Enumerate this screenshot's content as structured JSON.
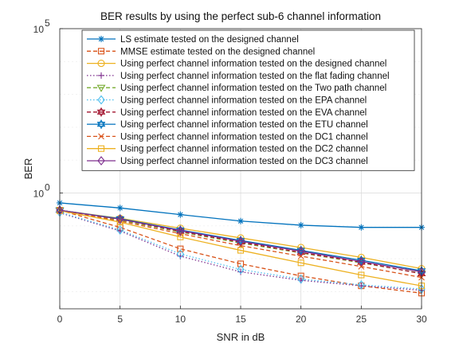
{
  "chart_data": {
    "type": "line",
    "title": "BER results by using the perfect sub-6 channel information",
    "xlabel": "SNR in dB",
    "ylabel": "BER",
    "yscale": "log",
    "x": [
      0,
      5,
      10,
      15,
      20,
      25,
      30
    ],
    "xlim": [
      0,
      30
    ],
    "ylim": [
      0.0003,
      100000
    ],
    "xticks": [
      "0",
      "5",
      "10",
      "15",
      "20",
      "25",
      "30"
    ],
    "yticks": [
      {
        "value": 100000,
        "base": "10",
        "exp": "5"
      },
      {
        "value": 1,
        "base": "10",
        "exp": "0"
      }
    ],
    "grid": true,
    "legend_position": "top",
    "series": [
      {
        "name": "LS estimate tested on the designed channel",
        "color": "#0072bd",
        "dash": "solid",
        "marker": "asterisk",
        "values": [
          0.5,
          0.35,
          0.22,
          0.14,
          0.105,
          0.09,
          0.09
        ]
      },
      {
        "name": "MMSE estimate tested on the designed channel",
        "color": "#d95319",
        "dash": "dashed",
        "marker": "square",
        "values": [
          0.3,
          0.09,
          0.02,
          0.007,
          0.003,
          0.0015,
          0.0009
        ]
      },
      {
        "name": "Using perfect channel information tested on the designed channel",
        "color": "#edb120",
        "dash": "solid",
        "marker": "circle",
        "values": [
          0.3,
          0.17,
          0.085,
          0.043,
          0.022,
          0.011,
          0.005
        ]
      },
      {
        "name": "Using perfect channel information tested on the flat fading channel",
        "color": "#7e2f8e",
        "dash": "dotted",
        "marker": "plus",
        "values": [
          0.25,
          0.07,
          0.012,
          0.004,
          0.0022,
          0.0015,
          0.0011
        ]
      },
      {
        "name": "Using perfect channel information tested on the Two path channel",
        "color": "#77ac30",
        "dash": "dashed",
        "marker": "triangle-down",
        "values": [
          0.3,
          0.15,
          0.065,
          0.03,
          0.015,
          0.0075,
          0.0036
        ]
      },
      {
        "name": "Using perfect channel information tested on the EPA channel",
        "color": "#4dbeee",
        "dash": "dotted",
        "marker": "diamond",
        "values": [
          0.26,
          0.075,
          0.014,
          0.0047,
          0.0024,
          0.0016,
          0.0012
        ]
      },
      {
        "name": "Using perfect channel information tested on the EVA channel",
        "color": "#a2142f",
        "dash": "dashed",
        "marker": "hexagram",
        "values": [
          0.3,
          0.16,
          0.068,
          0.032,
          0.0155,
          0.0078,
          0.0035
        ]
      },
      {
        "name": "Using perfect channel information tested on the ETU channel",
        "color": "#0072bd",
        "dash": "solid",
        "marker": "hexagram",
        "values": [
          0.3,
          0.165,
          0.075,
          0.036,
          0.018,
          0.009,
          0.0043
        ]
      },
      {
        "name": "Using perfect channel information tested on the DC1 channel",
        "color": "#d95319",
        "dash": "dashed",
        "marker": "x",
        "values": [
          0.3,
          0.14,
          0.058,
          0.025,
          0.012,
          0.0058,
          0.0027
        ]
      },
      {
        "name": "Using perfect channel information tested on the DC2 channel",
        "color": "#edb120",
        "dash": "solid",
        "marker": "square",
        "values": [
          0.29,
          0.13,
          0.046,
          0.018,
          0.0075,
          0.0032,
          0.0015
        ]
      },
      {
        "name": "Using perfect channel information tested on the DC3 channel",
        "color": "#7e2f8e",
        "dash": "solid",
        "marker": "diamond",
        "values": [
          0.3,
          0.16,
          0.072,
          0.034,
          0.017,
          0.0082,
          0.004
        ]
      }
    ]
  }
}
